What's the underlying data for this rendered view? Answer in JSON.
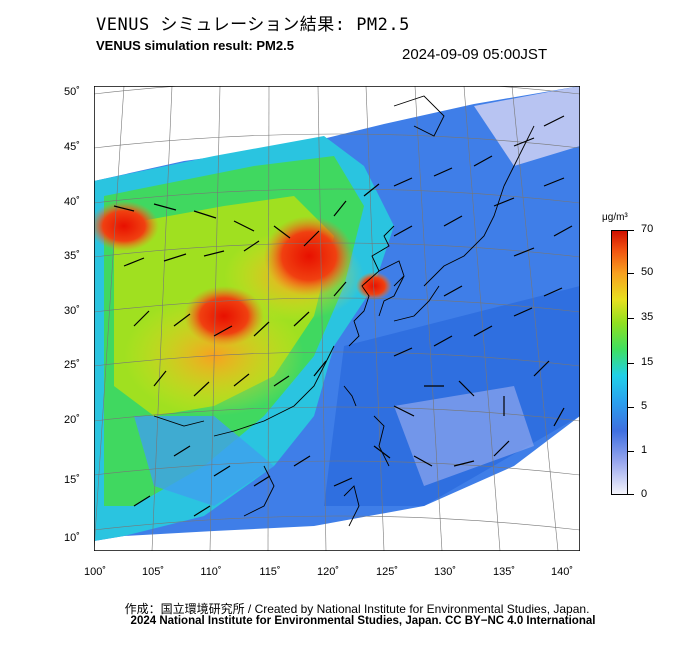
{
  "header": {
    "title_jp": "VENUS シミュレーション結果: PM2.5",
    "title_en": "VENUS simulation result: PM2.5",
    "timestamp": "2024-09-09 05:00JST"
  },
  "map": {
    "lat_labels": [
      "50˚",
      "45˚",
      "40˚",
      "35˚",
      "30˚",
      "25˚",
      "20˚",
      "15˚",
      "10˚"
    ],
    "lon_labels": [
      "100˚",
      "105˚",
      "110˚",
      "115˚",
      "120˚",
      "125˚",
      "130˚",
      "135˚",
      "140˚"
    ]
  },
  "colorbar": {
    "unit": "μg/m³",
    "ticks": [
      "70",
      "50",
      "35",
      "15",
      "5",
      "1",
      "0"
    ],
    "colors": [
      "#d01000",
      "#f05010",
      "#f8a020",
      "#e8e020",
      "#3fe060",
      "#20d0e8",
      "#3f6fe0",
      "#9aa8ee",
      "#f4f4fb"
    ]
  },
  "footer": {
    "credit_line": "作成：国立環境研究所 / Created by National Institute for Environmental Studies, Japan.",
    "license_line": "2024 National Institute for Environmental Studies, Japan. CC BY−NC 4.0 International"
  }
}
